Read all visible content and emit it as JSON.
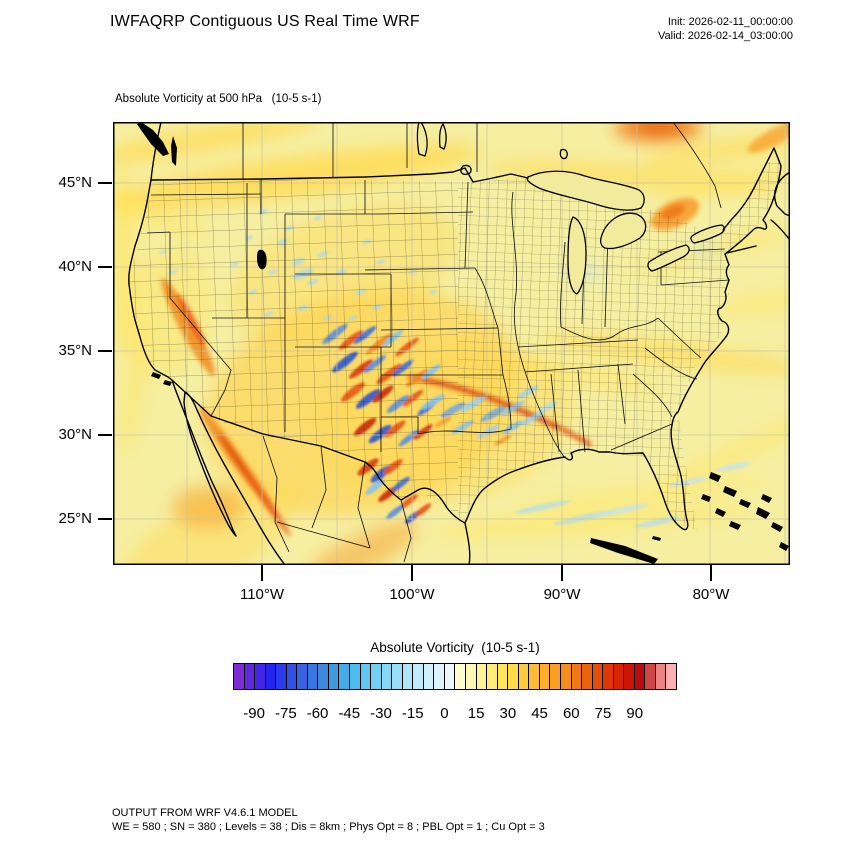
{
  "header": {
    "title": "IWFAQRP Contiguous US Real Time WRF",
    "init_line": "Init: 2026-02-11_00:00:00",
    "valid_line": "Valid: 2026-02-14_03:00:00"
  },
  "map_panel": {
    "subtitle": "Absolute Vorticity at 500 hPa   (10-5 s-1)",
    "lat_labels": [
      "45°N",
      "40°N",
      "35°N",
      "30°N",
      "25°N"
    ],
    "lon_labels": [
      "110°W",
      "100°W",
      "90°W",
      "80°W"
    ]
  },
  "footer": {
    "line1": "OUTPUT FROM WRF V4.6.1 MODEL",
    "line2": "WE = 580 ; SN = 380 ; Levels = 38 ; Dis = 8km ; Phys Opt = 8 ; PBL Opt = 1 ; Cu Opt = 3"
  },
  "chart_data": {
    "type": "heatmap",
    "title": "IWFAQRP Contiguous US Real Time WRF",
    "field": "Absolute Vorticity",
    "level": "500 hPa",
    "units": "10-5 s-1",
    "region": "Contiguous US",
    "init_time": "2026-02-11_00:00:00",
    "valid_time": "2026-02-14_03:00:00",
    "x_axis": {
      "label_type": "longitude",
      "ticks": [
        "110°W",
        "100°W",
        "90°W",
        "80°W"
      ]
    },
    "y_axis": {
      "label_type": "latitude",
      "ticks": [
        "45°N",
        "40°N",
        "35°N",
        "30°N",
        "25°N"
      ]
    },
    "colorbar": {
      "title": "Absolute Vorticity  (10-5 s-1)",
      "tick_values": [
        -90,
        -75,
        -60,
        -45,
        -30,
        -15,
        0,
        15,
        30,
        45,
        60,
        75,
        90
      ],
      "level_min": -100,
      "level_max": 100,
      "level_step": 5,
      "colors": [
        "#7D2BD6",
        "#5F28E0",
        "#4126E8",
        "#2424EE",
        "#2A3AEC",
        "#3050E8",
        "#3563E4",
        "#3A76E0",
        "#3E89DC",
        "#3F9BDE",
        "#44ACE6",
        "#4FBCEE",
        "#5FC8F2",
        "#72D0F5",
        "#86D8F7",
        "#9ADFF9",
        "#ADE5FA",
        "#BFEBFB",
        "#CFF0FC",
        "#DEF4FD",
        "#EAF8FE",
        "#FFFCCF",
        "#FFF8B2",
        "#FFF395",
        "#FFED78",
        "#FFE55C",
        "#FFDA49",
        "#FFCC3E",
        "#FFBD35",
        "#FFAE2D",
        "#FB9E25",
        "#F68D1E",
        "#F07917",
        "#EA6310",
        "#E54D0A",
        "#E03705",
        "#D92303",
        "#CD1507",
        "#BB0B10",
        "#D04545",
        "#EC8383",
        "#FBB1B1"
      ]
    },
    "field_notes": [
      "broad background values ~0 to 15 (pale yellow) across domain",
      "alternating positive/negative vorticity wave trains over southern Rockies, New Mexico and west Texas",
      "narrow positive streak from Oklahoma into Arkansas",
      "orange maximum along northern map edge over Ontario",
      "weak negative (light blue) speckles over the mountain west and central plains"
    ],
    "model_info": {
      "model": "WRF V4.6.1",
      "WE": 580,
      "SN": 380,
      "Levels": 38,
      "Dis": "8km",
      "Phys Opt": 8,
      "PBL Opt": 1,
      "Cu Opt": 3
    }
  }
}
